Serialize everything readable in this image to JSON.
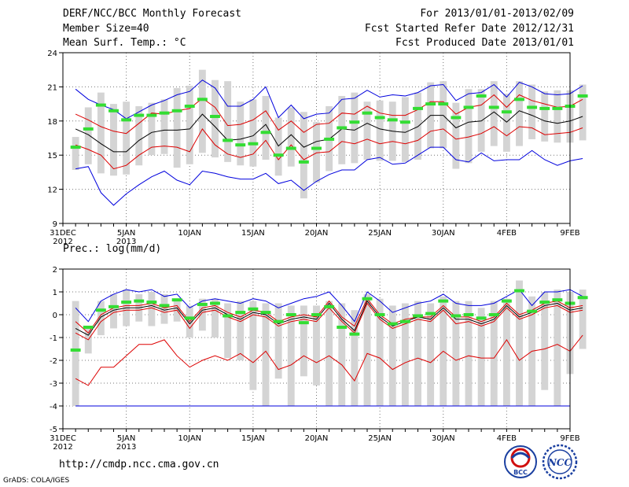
{
  "header": {
    "title": "DERF/NCC/BCC Monthly Forecast",
    "member_size": "Member Size=40",
    "variable": "Mean Surf. Temp.: °C",
    "period": "For 2013/01/01-2013/02/09",
    "start_date": "Fcst Started Refer Date 2012/12/31",
    "produced_date": "Fcst Produced Date 2013/01/01"
  },
  "footer": {
    "url": "http://cmdp.ncc.cma.gov.cn",
    "credit": "GrADS: COLA/IGES",
    "logo_left_text": "BCC",
    "logo_right_text": "NCC"
  },
  "colors": {
    "blue": "#0000dd",
    "red": "#dd0000",
    "black": "#000000",
    "green": "#33dd33",
    "box": "#d4d4d4"
  },
  "chart_data": [
    {
      "type": "line",
      "title": "Mean Surf. Temp.: °C",
      "ylim": [
        9,
        24
      ],
      "yticks": [
        9,
        12,
        15,
        18,
        21,
        24
      ],
      "x": [
        "31DEC",
        "1JAN",
        "2JAN",
        "3JAN",
        "4JAN",
        "5JAN",
        "6JAN",
        "7JAN",
        "8JAN",
        "9JAN",
        "10JAN",
        "11JAN",
        "12JAN",
        "13JAN",
        "14JAN",
        "15JAN",
        "16JAN",
        "17JAN",
        "18JAN",
        "19JAN",
        "20JAN",
        "21JAN",
        "22JAN",
        "23JAN",
        "24JAN",
        "25JAN",
        "26JAN",
        "27JAN",
        "28JAN",
        "29JAN",
        "30JAN",
        "31JAN",
        "1FEB",
        "2FEB",
        "3FEB",
        "4FEB",
        "5FEB",
        "6FEB",
        "7FEB",
        "8FEB",
        "9FEB"
      ],
      "xtick_labels": [
        {
          "index": 0,
          "label": "31DEC",
          "sub": "2012"
        },
        {
          "index": 5,
          "label": "5JAN",
          "sub": "2013"
        },
        {
          "index": 10,
          "label": "10JAN",
          "sub": ""
        },
        {
          "index": 15,
          "label": "15JAN",
          "sub": ""
        },
        {
          "index": 20,
          "label": "20JAN",
          "sub": ""
        },
        {
          "index": 25,
          "label": "25JAN",
          "sub": ""
        },
        {
          "index": 30,
          "label": "30JAN",
          "sub": ""
        },
        {
          "index": 35,
          "label": "4FEB",
          "sub": ""
        },
        {
          "index": 40,
          "label": "9FEB",
          "sub": ""
        }
      ],
      "series": [
        {
          "name": "max",
          "color": "blue",
          "x_start": 1,
          "values": [
            20.8,
            19.9,
            19.4,
            19.0,
            18.2,
            18.8,
            19.4,
            19.8,
            20.3,
            20.6,
            21.6,
            20.9,
            19.3,
            19.3,
            19.9,
            21.0,
            18.3,
            19.4,
            18.2,
            18.6,
            18.7,
            19.9,
            20.0,
            20.7,
            20.1,
            20.3,
            20.2,
            20.5,
            21.1,
            21.2,
            19.8,
            20.4,
            20.5,
            21.2,
            20.1,
            21.4,
            21.0,
            20.4,
            20.3,
            20.4,
            21.1
          ]
        },
        {
          "name": "plus_sd",
          "color": "red",
          "x_start": 1,
          "values": [
            18.6,
            18.1,
            17.5,
            17.1,
            16.9,
            17.8,
            18.7,
            18.6,
            18.9,
            19.1,
            20.0,
            19.2,
            17.6,
            17.7,
            18.1,
            18.9,
            17.2,
            18.0,
            17.0,
            17.7,
            17.8,
            18.7,
            18.6,
            19.3,
            18.7,
            18.5,
            18.5,
            19.0,
            19.7,
            19.7,
            18.6,
            19.2,
            19.4,
            20.3,
            19.2,
            20.3,
            19.8,
            19.5,
            19.2,
            19.3,
            19.9
          ]
        },
        {
          "name": "mean",
          "color": "black",
          "x_start": 1,
          "values": [
            17.3,
            16.8,
            16.0,
            15.3,
            15.3,
            16.3,
            17.0,
            17.2,
            17.2,
            17.3,
            18.6,
            17.5,
            16.3,
            16.4,
            16.7,
            17.7,
            15.8,
            16.8,
            15.7,
            16.2,
            16.4,
            17.3,
            17.2,
            17.8,
            17.3,
            17.1,
            17.0,
            17.5,
            18.5,
            18.5,
            17.4,
            17.9,
            18.0,
            18.8,
            17.9,
            18.9,
            18.5,
            18.0,
            17.8,
            18.0,
            18.4
          ]
        },
        {
          "name": "minus_sd",
          "color": "red",
          "x_start": 1,
          "values": [
            15.9,
            15.5,
            15.0,
            13.8,
            14.1,
            15.0,
            15.7,
            15.8,
            15.7,
            15.3,
            17.3,
            15.9,
            15.1,
            14.8,
            15.1,
            16.3,
            14.6,
            15.9,
            14.6,
            15.2,
            15.3,
            16.2,
            16.0,
            16.4,
            16.0,
            16.2,
            16.0,
            16.3,
            17.1,
            17.3,
            16.4,
            16.6,
            16.9,
            17.5,
            16.7,
            17.5,
            17.4,
            16.8,
            16.9,
            17.0,
            17.4
          ]
        },
        {
          "name": "min",
          "color": "blue",
          "x_start": 1,
          "values": [
            13.8,
            14.0,
            11.7,
            10.6,
            11.6,
            12.4,
            13.1,
            13.6,
            12.8,
            12.4,
            13.6,
            13.4,
            13.1,
            12.9,
            12.9,
            13.4,
            12.5,
            12.8,
            11.9,
            12.7,
            13.3,
            13.7,
            13.7,
            14.6,
            14.8,
            14.2,
            14.3,
            15.0,
            15.7,
            15.7,
            14.6,
            14.4,
            15.2,
            14.5,
            14.6,
            14.6,
            15.4,
            14.6,
            14.1,
            14.5,
            14.7
          ]
        }
      ],
      "boxes": {
        "x_start": 1,
        "low": [
          13.7,
          14.2,
          13.4,
          13.2,
          13.3,
          14.1,
          15.0,
          15.1,
          13.9,
          14.2,
          15.2,
          14.8,
          14.4,
          14.1,
          14.0,
          14.6,
          13.2,
          14.0,
          11.2,
          12.6,
          13.6,
          14.2,
          14.3,
          14.6,
          14.5,
          14.5,
          14.4,
          14.6,
          15.6,
          15.6,
          13.8,
          14.3,
          15.3,
          15.8,
          15.3,
          15.8,
          16.4,
          16.2,
          16.1,
          16.1,
          16.3
        ],
        "high": [
          16.6,
          19.2,
          20.5,
          19.5,
          19.7,
          19.3,
          19.6,
          19.9,
          20.9,
          21.1,
          22.5,
          21.6,
          21.5,
          19.7,
          19.9,
          20.2,
          18.3,
          19.2,
          18.8,
          17.9,
          19.3,
          20.2,
          20.5,
          19.7,
          19.8,
          19.7,
          20.1,
          20.5,
          21.4,
          21.5,
          19.6,
          20.8,
          20.8,
          21.5,
          20.4,
          21.5,
          21.2,
          20.6,
          20.7,
          20.7,
          21.2
        ]
      },
      "observed": {
        "x_start": 1,
        "values": [
          15.7,
          17.3,
          19.4,
          18.9,
          18.1,
          18.5,
          18.5,
          18.7,
          18.9,
          19.3,
          19.9,
          18.4,
          16.3,
          15.9,
          16.0,
          17.0,
          15.0,
          15.6,
          14.4,
          15.6,
          16.4,
          17.4,
          17.9,
          18.7,
          18.3,
          18.1,
          17.9,
          19.1,
          19.5,
          19.5,
          18.3,
          19.2,
          20.2,
          19.2,
          18.8,
          19.9,
          19.2,
          19.1,
          19.1,
          19.3,
          20.2
        ]
      }
    },
    {
      "type": "line",
      "title": "Prec.: log(mm/d)",
      "ylim": [
        -5,
        2
      ],
      "yticks": [
        -5,
        -4,
        -3,
        -2,
        -1,
        0,
        1,
        2
      ],
      "x": [
        "31DEC",
        "1JAN",
        "2JAN",
        "3JAN",
        "4JAN",
        "5JAN",
        "6JAN",
        "7JAN",
        "8JAN",
        "9JAN",
        "10JAN",
        "11JAN",
        "12JAN",
        "13JAN",
        "14JAN",
        "15JAN",
        "16JAN",
        "17JAN",
        "18JAN",
        "19JAN",
        "20JAN",
        "21JAN",
        "22JAN",
        "23JAN",
        "24JAN",
        "25JAN",
        "26JAN",
        "27JAN",
        "28JAN",
        "29JAN",
        "30JAN",
        "31JAN",
        "1FEB",
        "2FEB",
        "3FEB",
        "4FEB",
        "5FEB",
        "6FEB",
        "7FEB",
        "8FEB",
        "9FEB"
      ],
      "xtick_labels": [
        {
          "index": 0,
          "label": "31DEC",
          "sub": "2012"
        },
        {
          "index": 5,
          "label": "5JAN",
          "sub": "2013"
        },
        {
          "index": 10,
          "label": "10JAN",
          "sub": ""
        },
        {
          "index": 15,
          "label": "15JAN",
          "sub": ""
        },
        {
          "index": 20,
          "label": "20JAN",
          "sub": ""
        },
        {
          "index": 25,
          "label": "25JAN",
          "sub": ""
        },
        {
          "index": 30,
          "label": "30JAN",
          "sub": ""
        },
        {
          "index": 35,
          "label": "4FEB",
          "sub": ""
        },
        {
          "index": 40,
          "label": "9FEB",
          "sub": ""
        }
      ],
      "series": [
        {
          "name": "max",
          "color": "blue",
          "x_start": 1,
          "values": [
            0.3,
            -0.3,
            0.6,
            0.9,
            1.1,
            1.0,
            1.1,
            0.8,
            0.9,
            0.3,
            0.6,
            0.7,
            0.6,
            0.5,
            0.7,
            0.6,
            0.3,
            0.5,
            0.7,
            0.8,
            1.0,
            0.4,
            -0.3,
            1.0,
            0.6,
            0.1,
            0.3,
            0.5,
            0.6,
            0.9,
            0.5,
            0.4,
            0.4,
            0.5,
            0.8,
            1.1,
            0.4,
            1.0,
            1.0,
            1.1,
            0.8
          ]
        },
        {
          "name": "plus_sd",
          "color": "red",
          "x_start": 1,
          "values": [
            -0.3,
            -0.8,
            0.0,
            0.3,
            0.4,
            0.4,
            0.5,
            0.3,
            0.4,
            -0.3,
            0.3,
            0.4,
            0.1,
            -0.1,
            0.2,
            0.1,
            -0.3,
            -0.1,
            0.0,
            -0.1,
            0.6,
            -0.1,
            -0.5,
            0.7,
            0.0,
            -0.4,
            -0.2,
            -0.1,
            -0.1,
            0.4,
            -0.1,
            -0.1,
            -0.3,
            -0.1,
            0.5,
            0.0,
            0.2,
            0.5,
            0.6,
            0.3,
            0.4
          ]
        },
        {
          "name": "mean",
          "color": "black",
          "x_start": 1,
          "values": [
            -0.6,
            -0.9,
            -0.1,
            0.2,
            0.3,
            0.3,
            0.4,
            0.2,
            0.3,
            -0.4,
            0.2,
            0.3,
            0.0,
            -0.2,
            0.1,
            0.0,
            -0.4,
            -0.2,
            -0.1,
            -0.2,
            0.5,
            -0.2,
            -0.7,
            0.6,
            -0.1,
            -0.5,
            -0.3,
            -0.1,
            -0.2,
            0.3,
            -0.2,
            -0.2,
            -0.4,
            -0.2,
            0.4,
            -0.1,
            0.1,
            0.4,
            0.5,
            0.2,
            0.3
          ]
        },
        {
          "name": "minus_sd",
          "color": "red",
          "x_start": 1,
          "values": [
            -0.8,
            -1.1,
            -0.3,
            0.1,
            0.2,
            0.2,
            0.3,
            0.1,
            0.2,
            -0.6,
            0.1,
            0.2,
            -0.1,
            -0.3,
            0.0,
            -0.1,
            -0.5,
            -0.3,
            -0.2,
            -0.3,
            0.3,
            -0.3,
            -0.8,
            0.5,
            -0.2,
            -0.6,
            -0.4,
            -0.2,
            -0.3,
            0.2,
            -0.4,
            -0.3,
            -0.5,
            -0.3,
            0.3,
            -0.2,
            0.0,
            0.3,
            0.4,
            0.1,
            0.2
          ]
        },
        {
          "name": "min",
          "color": "red",
          "x_start": 1,
          "values": [
            -2.8,
            -3.1,
            -2.3,
            -2.3,
            -1.8,
            -1.3,
            -1.3,
            -1.1,
            -1.8,
            -2.3,
            -2.0,
            -1.8,
            -2.0,
            -1.7,
            -2.1,
            -1.6,
            -2.4,
            -2.2,
            -1.8,
            -2.1,
            -1.8,
            -2.2,
            -2.9,
            -1.7,
            -1.9,
            -2.4,
            -2.1,
            -1.9,
            -2.1,
            -1.6,
            -2.0,
            -1.8,
            -1.9,
            -1.9,
            -1.1,
            -2.0,
            -1.6,
            -1.5,
            -1.3,
            -1.6,
            -0.9
          ]
        }
      ],
      "floor_line": {
        "value": -4,
        "color": "blue"
      },
      "boxes": {
        "x_start": 1,
        "low": [
          -4.0,
          -1.7,
          -0.9,
          -0.6,
          -0.5,
          -0.3,
          -0.5,
          -0.4,
          -0.3,
          -1.0,
          -0.7,
          -1.0,
          -1.9,
          -2.0,
          -3.3,
          -4.0,
          -2.8,
          -4.0,
          -2.7,
          -3.1,
          -4.0,
          -4.0,
          -4.0,
          -4.0,
          -4.0,
          -4.0,
          -4.0,
          -4.0,
          -4.0,
          -4.0,
          -4.0,
          -4.0,
          -4.0,
          -4.0,
          -4.0,
          -4.0,
          -4.0,
          -3.3,
          -4.0,
          -2.6,
          -1.5
        ],
        "high": [
          0.6,
          -0.5,
          0.6,
          0.9,
          1.1,
          0.9,
          1.0,
          0.9,
          0.7,
          0.4,
          0.7,
          0.7,
          0.5,
          0.6,
          0.6,
          0.5,
          0.5,
          0.4,
          0.4,
          0.4,
          0.6,
          0.5,
          0.2,
          0.9,
          0.7,
          0.4,
          0.5,
          0.6,
          0.5,
          0.8,
          0.6,
          0.6,
          0.3,
          0.6,
          0.7,
          1.5,
          0.8,
          1.0,
          1.1,
          1.0,
          1.1
        ]
      },
      "observed": {
        "x_start": 1,
        "values": [
          -1.55,
          -0.55,
          0.2,
          0.35,
          0.55,
          0.6,
          0.55,
          0.4,
          0.65,
          -0.15,
          0.45,
          0.5,
          -0.05,
          0.1,
          0.25,
          0.1,
          -0.3,
          0.0,
          -0.35,
          0.0,
          0.35,
          -0.55,
          -0.85,
          0.7,
          0.0,
          -0.4,
          -0.3,
          -0.05,
          0.05,
          0.6,
          -0.05,
          0.0,
          -0.15,
          0.0,
          0.6,
          1.05,
          0.15,
          0.55,
          0.65,
          0.5,
          0.75
        ]
      }
    }
  ]
}
